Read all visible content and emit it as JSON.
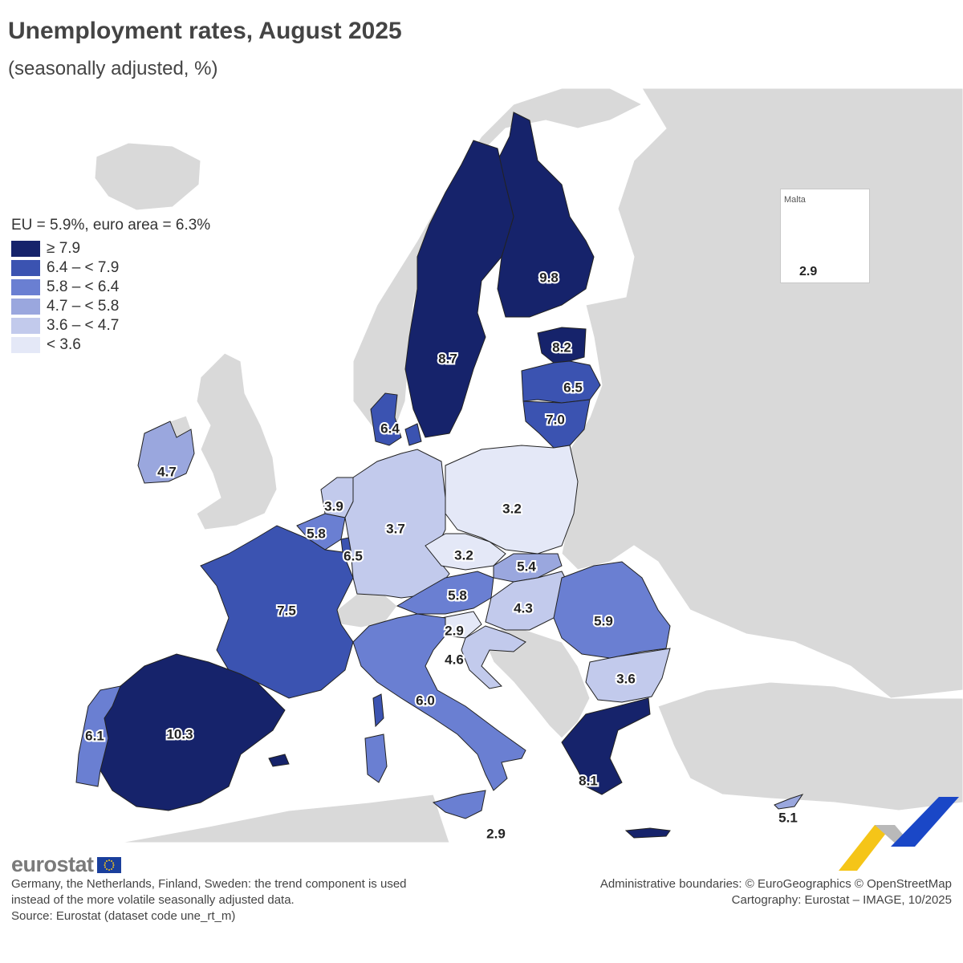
{
  "title": "Unemployment rates, August 2025",
  "subtitle": "(seasonally adjusted, %)",
  "legend": {
    "title": "EU = 5.9%, euro area = 6.3%",
    "classes": [
      {
        "label": "≥ 7.9",
        "color": "#16236b"
      },
      {
        "label": "6.4 – < 7.9",
        "color": "#3b53b1"
      },
      {
        "label": "5.8 – < 6.4",
        "color": "#6a7fd2"
      },
      {
        "label": "4.7 – < 5.8",
        "color": "#9aa7de"
      },
      {
        "label": "3.6 – < 4.7",
        "color": "#c2caec"
      },
      {
        "label": "< 3.6",
        "color": "#e4e8f7"
      }
    ]
  },
  "colors": {
    "non_eu_land": "#d9d9d9",
    "sea": "#ffffff",
    "border": "#222222",
    "label_halo": "#ffffff"
  },
  "inset": {
    "name": "Malta",
    "value": "2.9"
  },
  "values": {
    "finland": "9.8",
    "sweden": "8.7",
    "estonia": "8.2",
    "latvia": "6.5",
    "lithuania": "7.0",
    "denmark": "6.4",
    "ireland": "4.7",
    "netherlands": "3.9",
    "belgium": "5.8",
    "luxembourg": "6.5",
    "germany": "3.7",
    "poland": "3.2",
    "czechia": "3.2",
    "slovakia": "5.4",
    "austria": "5.8",
    "hungary": "4.3",
    "slovenia": "2.9",
    "croatia": "4.6",
    "romania": "5.9",
    "bulgaria": "3.6",
    "france": "7.5",
    "italy": "6.0",
    "spain": "10.3",
    "portugal": "6.1",
    "greece": "8.1",
    "cyprus": "5.1",
    "malta_sicily_note": "2.9"
  },
  "logo": "eurostat",
  "footnote": [
    "Germany, the Netherlands, Finland, Sweden: the trend component is used",
    "instead of the more volatile seasonally adjusted data.",
    "Source: Eurostat (dataset code une_rt_m)"
  ],
  "credits": [
    "Administrative boundaries: © EuroGeographics © OpenStreetMap",
    "Cartography: Eurostat – IMAGE, 10/2025"
  ]
}
